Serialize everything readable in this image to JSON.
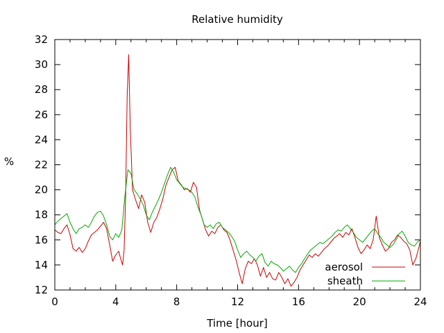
{
  "chart_data": {
    "type": "line",
    "title": "Relative humidity",
    "xlabel": "Time [hour]",
    "ylabel": "%",
    "xlim": [
      0,
      24
    ],
    "ylim": [
      12,
      32
    ],
    "xticks": [
      0,
      4,
      8,
      12,
      16,
      20,
      24
    ],
    "yticks": [
      12,
      14,
      16,
      18,
      20,
      22,
      24,
      26,
      28,
      30,
      32
    ],
    "grid": false,
    "legend_position": "bottom-right",
    "series": [
      {
        "name": "aerosol",
        "color": "#cc0000",
        "x": [
          0,
          0.2,
          0.4,
          0.6,
          0.8,
          1.0,
          1.2,
          1.4,
          1.6,
          1.8,
          2.0,
          2.2,
          2.4,
          2.6,
          2.8,
          3.0,
          3.2,
          3.4,
          3.6,
          3.8,
          4.0,
          4.2,
          4.3,
          4.45,
          4.55,
          4.65,
          4.75,
          4.85,
          4.95,
          5.1,
          5.3,
          5.5,
          5.7,
          5.9,
          6.1,
          6.3,
          6.5,
          6.7,
          6.9,
          7.1,
          7.3,
          7.5,
          7.7,
          7.9,
          8.1,
          8.3,
          8.5,
          8.7,
          8.9,
          9.1,
          9.3,
          9.5,
          9.7,
          9.9,
          10.1,
          10.3,
          10.5,
          10.7,
          10.9,
          11.1,
          11.3,
          11.5,
          11.7,
          11.9,
          12.1,
          12.3,
          12.5,
          12.7,
          12.9,
          13.1,
          13.3,
          13.5,
          13.7,
          13.9,
          14.1,
          14.3,
          14.5,
          14.7,
          14.9,
          15.1,
          15.3,
          15.5,
          15.7,
          15.9,
          16.1,
          16.3,
          16.5,
          16.7,
          16.9,
          17.1,
          17.3,
          17.5,
          17.7,
          17.9,
          18.1,
          18.3,
          18.5,
          18.7,
          18.9,
          19.1,
          19.3,
          19.5,
          19.7,
          19.9,
          20.1,
          20.3,
          20.5,
          20.7,
          20.9,
          21.1,
          21.3,
          21.5,
          21.7,
          21.9,
          22.1,
          22.3,
          22.5,
          22.7,
          22.9,
          23.1,
          23.3,
          23.5,
          23.7,
          23.9,
          24.0
        ],
        "y": [
          16.8,
          16.6,
          16.5,
          16.9,
          17.2,
          16.4,
          15.3,
          15.1,
          15.4,
          15.0,
          15.3,
          15.9,
          16.4,
          16.6,
          16.8,
          17.1,
          17.4,
          16.9,
          15.6,
          14.3,
          14.8,
          15.1,
          14.6,
          14.0,
          15.2,
          19.5,
          27.5,
          30.8,
          25.0,
          20.0,
          19.2,
          18.5,
          19.6,
          19.0,
          17.4,
          16.6,
          17.4,
          17.8,
          18.5,
          19.3,
          20.4,
          21.0,
          21.6,
          21.8,
          20.7,
          20.4,
          20.0,
          20.1,
          19.8,
          20.6,
          20.2,
          18.4,
          17.6,
          16.8,
          16.3,
          16.7,
          16.5,
          17.0,
          17.2,
          16.8,
          16.6,
          16.0,
          15.2,
          14.4,
          13.4,
          12.5,
          13.7,
          14.3,
          14.1,
          14.5,
          14.0,
          13.1,
          13.8,
          13.0,
          13.4,
          12.9,
          12.8,
          13.4,
          13.0,
          12.5,
          12.9,
          12.3,
          12.6,
          13.0,
          13.6,
          14.0,
          14.4,
          14.8,
          14.6,
          14.9,
          14.7,
          15.0,
          15.3,
          15.5,
          15.8,
          16.1,
          16.3,
          16.5,
          16.2,
          16.6,
          16.4,
          16.9,
          16.2,
          15.4,
          14.9,
          15.2,
          15.6,
          15.3,
          16.0,
          17.9,
          16.2,
          15.6,
          15.1,
          15.3,
          15.8,
          16.0,
          16.4,
          16.2,
          15.9,
          15.7,
          15.2,
          14.0,
          14.5,
          15.4,
          15.9
        ]
      },
      {
        "name": "sheath",
        "color": "#00aa00",
        "x": [
          0,
          0.2,
          0.4,
          0.6,
          0.8,
          1.0,
          1.2,
          1.4,
          1.6,
          1.8,
          2.0,
          2.2,
          2.4,
          2.6,
          2.8,
          3.0,
          3.2,
          3.4,
          3.6,
          3.8,
          4.0,
          4.2,
          4.4,
          4.6,
          4.8,
          5.0,
          5.2,
          5.4,
          5.6,
          5.8,
          6.0,
          6.2,
          6.4,
          6.6,
          6.8,
          7.0,
          7.2,
          7.4,
          7.6,
          7.8,
          8.0,
          8.2,
          8.4,
          8.6,
          8.8,
          9.0,
          9.2,
          9.4,
          9.6,
          9.8,
          10.0,
          10.2,
          10.4,
          10.6,
          10.8,
          11.0,
          11.2,
          11.4,
          11.6,
          11.8,
          12.0,
          12.2,
          12.4,
          12.6,
          12.8,
          13.0,
          13.2,
          13.4,
          13.6,
          13.8,
          14.0,
          14.2,
          14.4,
          14.6,
          14.8,
          15.0,
          15.2,
          15.4,
          15.6,
          15.8,
          16.0,
          16.2,
          16.4,
          16.6,
          16.8,
          17.0,
          17.2,
          17.4,
          17.6,
          17.8,
          18.0,
          18.2,
          18.4,
          18.6,
          18.8,
          19.0,
          19.2,
          19.4,
          19.6,
          19.8,
          20.0,
          20.2,
          20.4,
          20.6,
          20.8,
          21.0,
          21.2,
          21.4,
          21.6,
          21.8,
          22.0,
          22.2,
          22.4,
          22.6,
          22.8,
          23.0,
          23.2,
          23.4,
          23.6,
          23.8,
          24.0
        ],
        "y": [
          17.2,
          17.5,
          17.7,
          17.9,
          18.1,
          17.4,
          16.9,
          16.5,
          16.9,
          17.0,
          17.2,
          17.0,
          17.4,
          17.9,
          18.2,
          18.3,
          17.9,
          17.2,
          16.3,
          16.0,
          16.5,
          16.2,
          16.8,
          19.5,
          21.6,
          21.3,
          20.0,
          19.7,
          19.3,
          18.8,
          18.0,
          17.6,
          18.2,
          18.7,
          19.2,
          19.8,
          20.5,
          21.2,
          21.8,
          21.4,
          20.8,
          20.5,
          20.2,
          20.1,
          20.0,
          19.8,
          19.4,
          18.6,
          18.0,
          17.2,
          17.0,
          17.2,
          16.9,
          17.3,
          17.4,
          17.0,
          16.8,
          16.6,
          16.3,
          15.9,
          15.2,
          14.6,
          14.9,
          15.1,
          14.8,
          14.6,
          14.3,
          14.7,
          14.9,
          14.2,
          13.9,
          14.3,
          14.1,
          14.0,
          13.8,
          13.5,
          13.7,
          13.9,
          13.6,
          13.4,
          13.8,
          14.1,
          14.5,
          14.9,
          15.2,
          15.4,
          15.6,
          15.8,
          15.7,
          15.9,
          16.1,
          16.3,
          16.6,
          16.8,
          16.7,
          17.0,
          17.2,
          16.9,
          16.6,
          16.2,
          16.0,
          15.8,
          16.1,
          16.4,
          16.7,
          16.9,
          16.5,
          16.2,
          15.8,
          15.6,
          15.4,
          15.6,
          16.0,
          16.5,
          16.7,
          16.3,
          15.8,
          15.6,
          15.5,
          15.8,
          16.0
        ]
      }
    ]
  }
}
